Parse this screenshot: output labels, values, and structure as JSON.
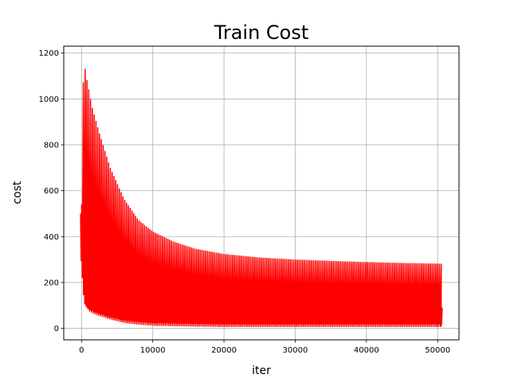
{
  "chart_data": {
    "type": "line",
    "title": "Train Cost",
    "xlabel": "iter",
    "ylabel": "cost",
    "xlim": [
      -2500,
      53000
    ],
    "ylim": [
      -50,
      1230
    ],
    "xticks": [
      0,
      10000,
      20000,
      30000,
      40000,
      50000
    ],
    "yticks": [
      0,
      200,
      400,
      600,
      800,
      1000,
      1200
    ],
    "grid": true,
    "series": [
      {
        "color": "#ff0000",
        "x_range": [
          0,
          50500
        ],
        "cycles": 200,
        "upper_envelope": [
          [
            0,
            540
          ],
          [
            300,
            1170
          ],
          [
            700,
            1090
          ],
          [
            1500,
            960
          ],
          [
            2500,
            850
          ],
          [
            4000,
            700
          ],
          [
            6000,
            560
          ],
          [
            8000,
            470
          ],
          [
            10000,
            420
          ],
          [
            13000,
            375
          ],
          [
            16000,
            345
          ],
          [
            20000,
            322
          ],
          [
            25000,
            307
          ],
          [
            30000,
            298
          ],
          [
            35000,
            292
          ],
          [
            40000,
            287
          ],
          [
            45000,
            283
          ],
          [
            50500,
            280
          ]
        ],
        "lower_envelope": [
          [
            0,
            320
          ],
          [
            500,
            100
          ],
          [
            1000,
            75
          ],
          [
            2000,
            60
          ],
          [
            4000,
            40
          ],
          [
            6000,
            25
          ],
          [
            8000,
            18
          ],
          [
            10000,
            13
          ],
          [
            15000,
            10
          ],
          [
            20000,
            8
          ],
          [
            30000,
            8
          ],
          [
            40000,
            8
          ],
          [
            50500,
            8
          ]
        ],
        "dense_band": [
          [
            0,
            500
          ],
          [
            2000,
            560
          ],
          [
            4000,
            440
          ],
          [
            6000,
            350
          ],
          [
            8000,
            280
          ],
          [
            10000,
            230
          ],
          [
            15000,
            170
          ],
          [
            20000,
            135
          ],
          [
            30000,
            105
          ],
          [
            40000,
            95
          ],
          [
            50500,
            90
          ]
        ]
      }
    ]
  }
}
